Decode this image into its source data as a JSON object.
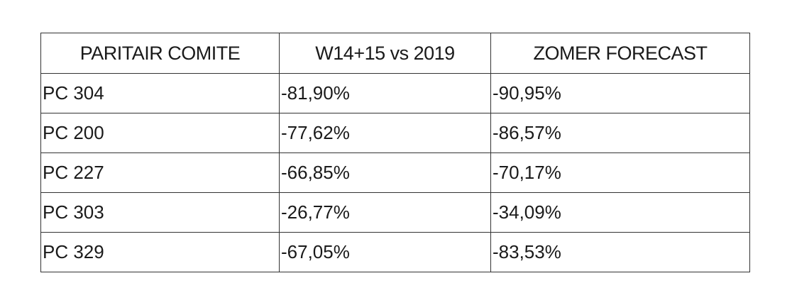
{
  "table": {
    "headers": [
      "PARITAIR COMITE",
      "W14+15 vs 2019",
      "ZOMER FORECAST"
    ],
    "rows": [
      [
        "PC 304",
        "-81,90%",
        "-90,95%"
      ],
      [
        "PC 200",
        "-77,62%",
        "-86,57%"
      ],
      [
        "PC 227",
        "-66,85%",
        "-70,17%"
      ],
      [
        "PC 303",
        "-26,77%",
        "-34,09%"
      ],
      [
        "PC 329",
        "-67,05%",
        "-83,53%"
      ]
    ]
  },
  "chart_data": {
    "type": "table",
    "columns": [
      "PARITAIR COMITE",
      "W14+15 vs 2019",
      "ZOMER FORECAST"
    ],
    "rows": [
      [
        "PC 304",
        "-81,90%",
        "-90,95%"
      ],
      [
        "PC 200",
        "-77,62%",
        "-86,57%"
      ],
      [
        "PC 227",
        "-66,85%",
        "-70,17%"
      ],
      [
        "PC 303",
        "-26,77%",
        "-34,09%"
      ],
      [
        "PC 329",
        "-67,05%",
        "-83,53%"
      ]
    ]
  }
}
